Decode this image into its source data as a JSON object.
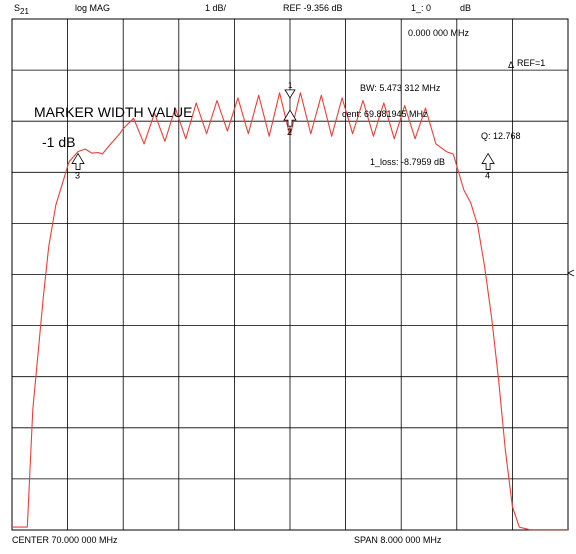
{
  "header": {
    "param": "S",
    "param_sub": "21",
    "format": "log MAG",
    "scale": "1 dB/",
    "ref": "REF -9.356 dB",
    "marker_readout": "1_: 0",
    "marker_readout_unit": "dB"
  },
  "readouts": {
    "delta_freq": "0.000 000 MHz",
    "ref_marker": "REF=1",
    "bw": "BW:   5.473 312 MHz",
    "cent": "cent:  69.881945 MHz",
    "q": "Q: 12.768",
    "loss": "1_loss: -8.7959 dB"
  },
  "annotation": {
    "title": "MARKER WIDTH VALUE",
    "width_value": "-1 dB"
  },
  "footer": {
    "center": "CENTER  70.000 000 MHz",
    "span": "SPAN   8.000 000 MHz"
  },
  "colors": {
    "trace": "#e8403a",
    "grid": "#000000",
    "background": "#ffffff"
  },
  "chart_data": {
    "type": "line",
    "x_unit": "MHz",
    "y_unit": "dB",
    "xlim": [
      66.0,
      74.0
    ],
    "ylim": [
      -19.356,
      -9.356
    ],
    "grid": true,
    "series": [
      {
        "x": [
          66.0,
          66.22,
          66.3,
          66.45,
          66.53,
          66.63,
          66.72,
          66.82,
          66.95,
          67.05,
          67.15,
          67.25,
          67.3,
          67.42,
          67.55,
          67.6,
          67.75,
          67.9,
          68.05,
          68.2,
          68.35,
          68.5,
          68.65,
          68.8,
          68.95,
          69.1,
          69.25,
          69.4,
          69.55,
          69.7,
          69.85,
          70.0,
          70.15,
          70.3,
          70.45,
          70.6,
          70.75,
          70.9,
          71.05,
          71.2,
          71.35,
          71.5,
          71.65,
          71.8,
          71.95,
          72.1,
          72.25,
          72.35,
          72.5,
          72.6,
          72.7,
          72.8,
          72.9,
          73.0,
          73.1,
          73.2,
          73.3,
          73.45,
          73.6,
          74.0
        ],
        "y": [
          -19.3,
          -19.3,
          -17.0,
          -14.8,
          -13.8,
          -13.0,
          -12.6,
          -12.15,
          -11.95,
          -11.9,
          -11.98,
          -11.97,
          -12.0,
          -11.8,
          -11.6,
          -11.5,
          -11.3,
          -11.8,
          -11.2,
          -11.75,
          -11.1,
          -11.7,
          -11.0,
          -11.6,
          -10.95,
          -11.55,
          -10.9,
          -11.6,
          -10.85,
          -11.65,
          -10.8,
          -11.65,
          -10.8,
          -11.6,
          -10.85,
          -11.65,
          -10.9,
          -11.6,
          -10.95,
          -11.65,
          -11.0,
          -11.7,
          -11.05,
          -11.7,
          -11.1,
          -11.8,
          -11.95,
          -12.0,
          -12.7,
          -12.95,
          -13.4,
          -14.2,
          -15.2,
          -16.4,
          -17.8,
          -18.9,
          -19.3,
          -19.35,
          -19.35,
          -19.35
        ]
      }
    ],
    "markers": [
      {
        "label": "1",
        "x": 70.0,
        "y": -10.9
      },
      {
        "label": "2",
        "x": 70.0,
        "y": -11.1
      },
      {
        "label": "3",
        "x": 66.95,
        "y": -11.95
      },
      {
        "label": "4",
        "x": 72.85,
        "y": -11.95
      }
    ]
  }
}
